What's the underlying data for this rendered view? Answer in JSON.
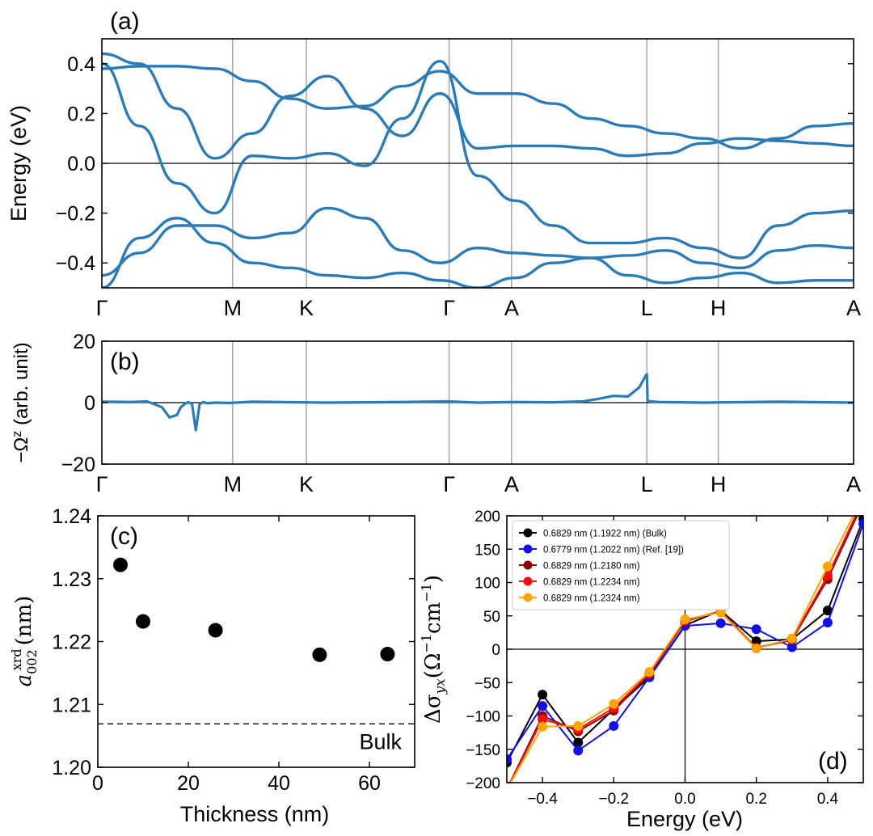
{
  "chart_data": [
    {
      "panel_label": "(a)",
      "type": "line",
      "title": "",
      "ylabel": "Energy (eV)",
      "ylim": [
        -0.5,
        0.5
      ],
      "yticks": [
        -0.4,
        -0.2,
        0.0,
        0.2,
        0.4
      ],
      "ytick_labels": [
        "−0.4",
        "−0.2",
        "0.0",
        "0.2",
        "0.4"
      ],
      "kpath_positions": [
        0,
        0.174,
        0.272,
        0.462,
        0.545,
        0.725,
        0.82,
        1.0
      ],
      "kpath_labels": [
        "Γ",
        "M",
        "K",
        "Γ",
        "A",
        "L",
        "H",
        "A"
      ],
      "line_color": "#2c7bb6",
      "band_samples_x": [
        0,
        0.05,
        0.1,
        0.15,
        0.2,
        0.25,
        0.3,
        0.35,
        0.4,
        0.45,
        0.5,
        0.55,
        0.6,
        0.65,
        0.7,
        0.75,
        0.8,
        0.85,
        0.9,
        0.95,
        1.0
      ],
      "bands": [
        [
          0.38,
          0.39,
          0.39,
          0.38,
          0.33,
          0.26,
          0.22,
          0.23,
          0.31,
          0.37,
          0.28,
          0.28,
          0.24,
          0.18,
          0.15,
          0.12,
          0.1,
          0.06,
          0.1,
          0.15,
          0.16
        ],
        [
          0.44,
          0.4,
          0.22,
          0.02,
          0.12,
          0.27,
          0.35,
          0.22,
          0.11,
          0.28,
          0.06,
          0.07,
          0.07,
          0.06,
          0.03,
          0.04,
          0.08,
          0.1,
          0.09,
          0.08,
          0.07
        ],
        [
          0.4,
          0.15,
          -0.08,
          -0.2,
          0.03,
          0.02,
          0.04,
          -0.01,
          0.18,
          0.41,
          -0.05,
          -0.15,
          -0.25,
          -0.32,
          -0.32,
          -0.3,
          -0.34,
          -0.38,
          -0.25,
          -0.2,
          -0.19
        ],
        [
          -0.45,
          -0.36,
          -0.25,
          -0.25,
          -0.3,
          -0.28,
          -0.18,
          -0.22,
          -0.35,
          -0.4,
          -0.34,
          -0.36,
          -0.37,
          -0.38,
          -0.37,
          -0.35,
          -0.4,
          -0.42,
          -0.35,
          -0.33,
          -0.34
        ],
        [
          -0.5,
          -0.3,
          -0.22,
          -0.32,
          -0.4,
          -0.42,
          -0.45,
          -0.46,
          -0.44,
          -0.47,
          -0.5,
          -0.46,
          -0.4,
          -0.38,
          -0.45,
          -0.48,
          -0.46,
          -0.44,
          -0.48,
          -0.47,
          -0.47
        ]
      ]
    },
    {
      "panel_label": "(b)",
      "type": "line",
      "ylabel": "−Ω^z (arb. unit)",
      "ylim": [
        -20,
        20
      ],
      "yticks": [
        -20,
        0,
        20
      ],
      "ytick_labels": [
        "−20",
        "0",
        "20"
      ],
      "kpath_positions": [
        0,
        0.174,
        0.272,
        0.462,
        0.545,
        0.725,
        0.82,
        1.0
      ],
      "kpath_labels": [
        "Γ",
        "M",
        "K",
        "Γ",
        "A",
        "L",
        "H",
        "A"
      ],
      "line_color": "#2c7bb6",
      "x": [
        0,
        0.04,
        0.06,
        0.07,
        0.08,
        0.09,
        0.1,
        0.105,
        0.11,
        0.115,
        0.12,
        0.125,
        0.13,
        0.135,
        0.14,
        0.15,
        0.17,
        0.2,
        0.3,
        0.4,
        0.46,
        0.5,
        0.55,
        0.6,
        0.64,
        0.66,
        0.68,
        0.7,
        0.715,
        0.724,
        0.725,
        0.726,
        0.74,
        0.8,
        0.9,
        1.0
      ],
      "y": [
        0.3,
        0.2,
        0.4,
        -0.5,
        -1.5,
        -4.8,
        -4.0,
        -1.5,
        -0.5,
        0.2,
        -0.5,
        -9.0,
        -0.5,
        0.2,
        -0.2,
        0.0,
        -0.1,
        0.3,
        0.0,
        0.2,
        0.4,
        0.0,
        0.2,
        0.1,
        0.4,
        1.2,
        2.2,
        2.0,
        5.0,
        9.0,
        9.2,
        0.5,
        0.2,
        0.0,
        0.3,
        0.0
      ]
    },
    {
      "panel_label": "(c)",
      "type": "scatter",
      "xlabel": "Thickness (nm)",
      "ylabel": "a_002^xrd (nm)",
      "ylabel_main": "a",
      "ylabel_sub": "002",
      "ylabel_sup": "xrd",
      "ylabel_unit": "(nm)",
      "xlim": [
        0,
        70
      ],
      "ylim": [
        1.2,
        1.24
      ],
      "xticks": [
        0,
        20,
        40,
        60
      ],
      "xtick_labels": [
        "0",
        "20",
        "40",
        "60"
      ],
      "yticks": [
        1.2,
        1.21,
        1.22,
        1.23,
        1.24
      ],
      "ytick_labels": [
        "1.20",
        "1.21",
        "1.22",
        "1.23",
        "1.24"
      ],
      "points": [
        [
          5,
          1.2322
        ],
        [
          10,
          1.2232
        ],
        [
          26,
          1.2218
        ],
        [
          49,
          1.2179
        ],
        [
          64,
          1.218
        ]
      ],
      "reference_line": {
        "value": 1.2069,
        "label": "Bulk",
        "style": "dashed"
      }
    },
    {
      "panel_label": "(d)",
      "type": "line",
      "xlabel": "Energy (eV)",
      "ylabel": "Δσ_yx (Ω^−1cm^−1)",
      "ylabel_prefix": "Δσ",
      "ylabel_sub": "yx",
      "ylabel_unit_a": "(Ω",
      "ylabel_sup_a": "−1",
      "ylabel_unit_b": "cm",
      "ylabel_sup_b": "−1",
      "ylabel_close": ")",
      "xlim": [
        -0.5,
        0.5
      ],
      "ylim": [
        -200,
        200
      ],
      "xticks": [
        -0.4,
        -0.2,
        0.0,
        0.2,
        0.4
      ],
      "xtick_labels": [
        "−0.4",
        "−0.2",
        "0.0",
        "0.2",
        "0.4"
      ],
      "yticks": [
        -200,
        -150,
        -100,
        -50,
        0,
        50,
        100,
        150,
        200
      ],
      "ytick_labels": [
        "−200",
        "−150",
        "−100",
        "−50",
        "0",
        "50",
        "100",
        "150",
        "200"
      ],
      "legend_position": "top-left",
      "x": [
        -0.5,
        -0.4,
        -0.3,
        -0.2,
        -0.1,
        0.0,
        0.1,
        0.2,
        0.3,
        0.4,
        0.5
      ],
      "series": [
        {
          "name": "0.6829 nm (1.1922 nm) (Bulk)",
          "color": "#000000",
          "values": [
            -170,
            -68,
            -140,
            -90,
            -42,
            36,
            58,
            12,
            15,
            58,
            195
          ]
        },
        {
          "name": "0.6779 nm (1.2022 nm) (Ref. [19])",
          "color": "#1010e6",
          "values": [
            -165,
            -85,
            -152,
            -115,
            -42,
            35,
            39,
            30,
            3,
            40,
            188
          ]
        },
        {
          "name": "0.6829 nm (1.2180 nm)",
          "color": "#8b0000",
          "values": [
            -210,
            -100,
            -123,
            -92,
            -38,
            42,
            57,
            2,
            14,
            105,
            220
          ]
        },
        {
          "name": "0.6829 nm (1.2234 nm)",
          "color": "#ee1111",
          "values": [
            -210,
            -105,
            -120,
            -88,
            -36,
            43,
            57,
            2,
            15,
            110,
            225
          ]
        },
        {
          "name": "0.6829 nm (1.2324 nm)",
          "color": "#ffa500",
          "values": [
            -210,
            -116,
            -115,
            -82,
            -34,
            45,
            55,
            1,
            16,
            124,
            230
          ]
        }
      ]
    }
  ]
}
